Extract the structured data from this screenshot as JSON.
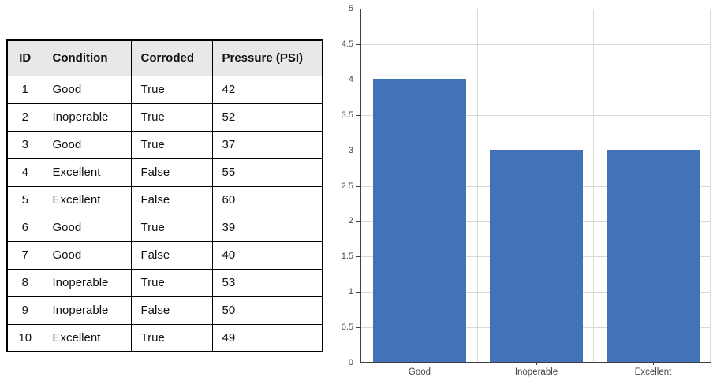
{
  "table": {
    "columns": [
      "ID",
      "Condition",
      "Corroded",
      "Pressure (PSI)"
    ],
    "rows": [
      [
        "1",
        "Good",
        "True",
        "42"
      ],
      [
        "2",
        "Inoperable",
        "True",
        "52"
      ],
      [
        "3",
        "Good",
        "True",
        "37"
      ],
      [
        "4",
        "Excellent",
        "False",
        "55"
      ],
      [
        "5",
        "Excellent",
        "False",
        "60"
      ],
      [
        "6",
        "Good",
        "True",
        "39"
      ],
      [
        "7",
        "Good",
        "False",
        "40"
      ],
      [
        "8",
        "Inoperable",
        "True",
        "53"
      ],
      [
        "9",
        "Inoperable",
        "False",
        "50"
      ],
      [
        "10",
        "Excellent",
        "True",
        "49"
      ]
    ],
    "header_bg": "#E8E8E8",
    "border_color": "#000000"
  },
  "chart_data": {
    "type": "bar",
    "categories": [
      "Good",
      "Inoperable",
      "Excellent"
    ],
    "values": [
      4,
      3,
      3
    ],
    "title": "",
    "xlabel": "",
    "ylabel": "",
    "ylim": [
      0,
      5
    ],
    "ytick_step": 0.5,
    "grid": true,
    "legend": false,
    "bar_color": "#4273B9",
    "gridline_color": "#D9D9D9",
    "axis_color": "#3F3F3F",
    "label_color": "#454545"
  }
}
